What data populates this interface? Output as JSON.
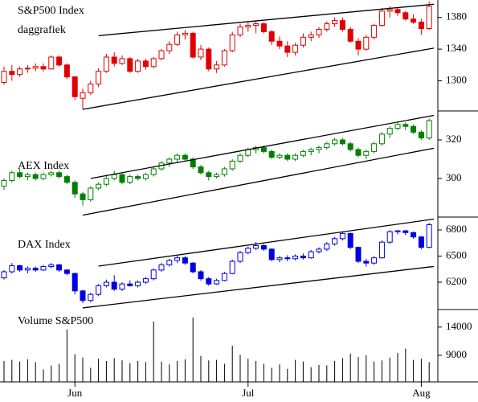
{
  "chart_data": [
    {
      "type": "candlestick",
      "title": "S&P500 Index",
      "subtitle": "daggrafiek",
      "color": "#e00000",
      "ylim": [
        1262,
        1402
      ],
      "yticks": [
        1300,
        1340,
        1380
      ],
      "ohlc": [
        [
          1298,
          1318,
          1295,
          1312
        ],
        [
          1312,
          1320,
          1300,
          1308
        ],
        [
          1308,
          1318,
          1305,
          1315
        ],
        [
          1315,
          1320,
          1310,
          1316
        ],
        [
          1316,
          1322,
          1312,
          1318
        ],
        [
          1318,
          1322,
          1312,
          1315
        ],
        [
          1315,
          1332,
          1314,
          1330
        ],
        [
          1330,
          1332,
          1318,
          1320
        ],
        [
          1320,
          1322,
          1302,
          1305
        ],
        [
          1305,
          1306,
          1276,
          1280
        ],
        [
          1278,
          1290,
          1264,
          1285
        ],
        [
          1285,
          1300,
          1282,
          1296
        ],
        [
          1296,
          1316,
          1292,
          1312
        ],
        [
          1312,
          1334,
          1310,
          1330
        ],
        [
          1330,
          1336,
          1318,
          1322
        ],
        [
          1322,
          1332,
          1320,
          1328
        ],
        [
          1328,
          1330,
          1310,
          1312
        ],
        [
          1312,
          1328,
          1310,
          1325
        ],
        [
          1325,
          1328,
          1314,
          1318
        ],
        [
          1318,
          1330,
          1316,
          1328
        ],
        [
          1328,
          1340,
          1326,
          1338
        ],
        [
          1338,
          1350,
          1334,
          1346
        ],
        [
          1346,
          1362,
          1344,
          1358
        ],
        [
          1358,
          1364,
          1352,
          1360
        ],
        [
          1360,
          1362,
          1328,
          1330
        ],
        [
          1330,
          1345,
          1326,
          1340
        ],
        [
          1340,
          1342,
          1312,
          1315
        ],
        [
          1315,
          1325,
          1310,
          1320
        ],
        [
          1320,
          1340,
          1318,
          1338
        ],
        [
          1338,
          1362,
          1336,
          1358
        ],
        [
          1358,
          1372,
          1355,
          1368
        ],
        [
          1368,
          1374,
          1362,
          1370
        ],
        [
          1370,
          1376,
          1360,
          1372
        ],
        [
          1372,
          1374,
          1360,
          1362
        ],
        [
          1362,
          1364,
          1345,
          1350
        ],
        [
          1350,
          1356,
          1340,
          1344
        ],
        [
          1344,
          1350,
          1330,
          1336
        ],
        [
          1336,
          1348,
          1332,
          1345
        ],
        [
          1345,
          1360,
          1342,
          1355
        ],
        [
          1355,
          1362,
          1350,
          1358
        ],
        [
          1358,
          1368,
          1354,
          1365
        ],
        [
          1365,
          1375,
          1362,
          1372
        ],
        [
          1372,
          1380,
          1368,
          1376
        ],
        [
          1376,
          1380,
          1362,
          1365
        ],
        [
          1365,
          1368,
          1348,
          1350
        ],
        [
          1350,
          1354,
          1332,
          1340
        ],
        [
          1340,
          1358,
          1338,
          1355
        ],
        [
          1355,
          1372,
          1352,
          1370
        ],
        [
          1370,
          1392,
          1368,
          1388
        ],
        [
          1388,
          1394,
          1380,
          1390
        ],
        [
          1390,
          1392,
          1382,
          1386
        ],
        [
          1386,
          1388,
          1376,
          1378
        ],
        [
          1378,
          1384,
          1372,
          1374
        ],
        [
          1374,
          1378,
          1358,
          1366
        ],
        [
          1366,
          1400,
          1364,
          1394
        ]
      ],
      "trendlines": [
        {
          "x": [
            12,
            55
          ],
          "y": [
            1357,
            1397
          ]
        },
        {
          "x": [
            10,
            55
          ],
          "y": [
            1264,
            1342
          ]
        }
      ]
    },
    {
      "type": "candlestick",
      "title": "AEX Index",
      "color": "#008000",
      "ylim": [
        280,
        335
      ],
      "yticks": [
        300,
        320
      ],
      "ohlc": [
        [
          296,
          300,
          294,
          299
        ],
        [
          299,
          304,
          298,
          303
        ],
        [
          303,
          305,
          300,
          301
        ],
        [
          301,
          303,
          299,
          302
        ],
        [
          302,
          303,
          299,
          300
        ],
        [
          300,
          303,
          299,
          302
        ],
        [
          302,
          304,
          301,
          303
        ],
        [
          303,
          304,
          300,
          301
        ],
        [
          301,
          302,
          297,
          298
        ],
        [
          298,
          299,
          290,
          292
        ],
        [
          292,
          293,
          286,
          289
        ],
        [
          289,
          296,
          288,
          295
        ],
        [
          295,
          298,
          294,
          297
        ],
        [
          297,
          302,
          296,
          300
        ],
        [
          300,
          304,
          299,
          302
        ],
        [
          302,
          303,
          297,
          298
        ],
        [
          298,
          302,
          297,
          301
        ],
        [
          301,
          302,
          299,
          300
        ],
        [
          300,
          303,
          299,
          302
        ],
        [
          302,
          306,
          301,
          305
        ],
        [
          305,
          309,
          304,
          308
        ],
        [
          308,
          311,
          306,
          310
        ],
        [
          310,
          313,
          308,
          312
        ],
        [
          312,
          313,
          309,
          310
        ],
        [
          310,
          311,
          305,
          306
        ],
        [
          306,
          307,
          302,
          303
        ],
        [
          303,
          304,
          299,
          301
        ],
        [
          301,
          303,
          300,
          302
        ],
        [
          302,
          306,
          301,
          305
        ],
        [
          305,
          310,
          304,
          309
        ],
        [
          309,
          313,
          308,
          312
        ],
        [
          312,
          316,
          311,
          315
        ],
        [
          315,
          317,
          313,
          316
        ],
        [
          316,
          317,
          313,
          314
        ],
        [
          314,
          315,
          310,
          311
        ],
        [
          311,
          313,
          310,
          312
        ],
        [
          312,
          313,
          309,
          310
        ],
        [
          310,
          313,
          309,
          312
        ],
        [
          312,
          315,
          311,
          314
        ],
        [
          314,
          316,
          312,
          315
        ],
        [
          315,
          317,
          313,
          316
        ],
        [
          316,
          319,
          315,
          318
        ],
        [
          318,
          321,
          317,
          320
        ],
        [
          320,
          321,
          317,
          318
        ],
        [
          318,
          319,
          314,
          315
        ],
        [
          315,
          316,
          311,
          312
        ],
        [
          312,
          315,
          310,
          314
        ],
        [
          314,
          319,
          313,
          318
        ],
        [
          318,
          324,
          317,
          323
        ],
        [
          323,
          327,
          321,
          326
        ],
        [
          326,
          329,
          325,
          328
        ],
        [
          328,
          329,
          325,
          327
        ],
        [
          327,
          328,
          323,
          324
        ],
        [
          324,
          325,
          320,
          321
        ],
        [
          321,
          331,
          320,
          330
        ]
      ],
      "trendlines": [
        {
          "x": [
            11,
            55
          ],
          "y": [
            300,
            333
          ]
        },
        {
          "x": [
            10,
            55
          ],
          "y": [
            281,
            316
          ]
        }
      ]
    },
    {
      "type": "candlestick",
      "title": "DAX Index",
      "color": "#0000e0",
      "ylim": [
        5886,
        6948
      ],
      "yticks": [
        6200,
        6500,
        6800
      ],
      "ohlc": [
        [
          6250,
          6340,
          6230,
          6320
        ],
        [
          6320,
          6420,
          6300,
          6390
        ],
        [
          6390,
          6400,
          6320,
          6340
        ],
        [
          6340,
          6380,
          6300,
          6360
        ],
        [
          6360,
          6380,
          6320,
          6340
        ],
        [
          6340,
          6400,
          6330,
          6380
        ],
        [
          6380,
          6420,
          6360,
          6400
        ],
        [
          6400,
          6410,
          6320,
          6340
        ],
        [
          6340,
          6350,
          6280,
          6300
        ],
        [
          6300,
          6310,
          6060,
          6100
        ],
        [
          6100,
          6110,
          5960,
          5990
        ],
        [
          5990,
          6080,
          5970,
          6060
        ],
        [
          6060,
          6180,
          6040,
          6160
        ],
        [
          6160,
          6230,
          6140,
          6200
        ],
        [
          6200,
          6280,
          6100,
          6120
        ],
        [
          6120,
          6200,
          6100,
          6180
        ],
        [
          6180,
          6220,
          6150,
          6160
        ],
        [
          6160,
          6220,
          6140,
          6200
        ],
        [
          6200,
          6260,
          6180,
          6240
        ],
        [
          6240,
          6360,
          6220,
          6340
        ],
        [
          6340,
          6420,
          6320,
          6400
        ],
        [
          6400,
          6470,
          6380,
          6450
        ],
        [
          6450,
          6500,
          6420,
          6480
        ],
        [
          6480,
          6500,
          6400,
          6420
        ],
        [
          6420,
          6430,
          6300,
          6320
        ],
        [
          6320,
          6340,
          6220,
          6240
        ],
        [
          6240,
          6260,
          6160,
          6180
        ],
        [
          6180,
          6240,
          6170,
          6220
        ],
        [
          6220,
          6320,
          6210,
          6300
        ],
        [
          6300,
          6460,
          6290,
          6440
        ],
        [
          6440,
          6560,
          6420,
          6540
        ],
        [
          6540,
          6610,
          6520,
          6590
        ],
        [
          6590,
          6660,
          6570,
          6620
        ],
        [
          6620,
          6640,
          6560,
          6580
        ],
        [
          6580,
          6590,
          6440,
          6460
        ],
        [
          6460,
          6500,
          6430,
          6480
        ],
        [
          6480,
          6510,
          6440,
          6470
        ],
        [
          6470,
          6520,
          6450,
          6500
        ],
        [
          6500,
          6530,
          6460,
          6480
        ],
        [
          6480,
          6570,
          6470,
          6550
        ],
        [
          6550,
          6600,
          6530,
          6580
        ],
        [
          6580,
          6660,
          6560,
          6640
        ],
        [
          6640,
          6720,
          6620,
          6700
        ],
        [
          6700,
          6780,
          6680,
          6760
        ],
        [
          6760,
          6770,
          6580,
          6600
        ],
        [
          6600,
          6610,
          6420,
          6440
        ],
        [
          6440,
          6470,
          6380,
          6420
        ],
        [
          6420,
          6500,
          6400,
          6480
        ],
        [
          6480,
          6680,
          6470,
          6660
        ],
        [
          6660,
          6800,
          6640,
          6780
        ],
        [
          6780,
          6800,
          6750,
          6790
        ],
        [
          6790,
          6800,
          6740,
          6770
        ],
        [
          6770,
          6780,
          6700,
          6720
        ],
        [
          6720,
          6730,
          6580,
          6600
        ],
        [
          6600,
          6880,
          6590,
          6860
        ]
      ],
      "trendlines": [
        {
          "x": [
            12,
            55
          ],
          "y": [
            6385,
            6930
          ]
        },
        {
          "x": [
            10,
            55
          ],
          "y": [
            5905,
            6385
          ]
        }
      ]
    },
    {
      "type": "bar",
      "title": "Volume S&P500",
      "color": "#000000",
      "ylim": [
        4300,
        17100
      ],
      "yticks": [
        9000,
        14000
      ],
      "categories": [
        null,
        null,
        null,
        null,
        null,
        null,
        null,
        null,
        null,
        "Jun",
        null,
        null,
        null,
        null,
        null,
        null,
        null,
        null,
        null,
        null,
        null,
        null,
        null,
        null,
        null,
        null,
        null,
        null,
        null,
        null,
        null,
        "Jul",
        null,
        null,
        null,
        null,
        null,
        null,
        null,
        null,
        null,
        null,
        null,
        null,
        null,
        null,
        null,
        null,
        null,
        null,
        null,
        null,
        null,
        "Aug",
        null
      ],
      "values": [
        8000,
        8200,
        7900,
        8300,
        7800,
        6500,
        7200,
        7500,
        13600,
        9200,
        8600,
        6800,
        8400,
        8000,
        8500,
        8100,
        7600,
        8000,
        7800,
        15000,
        7900,
        7400,
        8000,
        8300,
        15700,
        8900,
        8100,
        8200,
        7500,
        10700,
        9100,
        8400,
        8000,
        7500,
        6800,
        7400,
        6600,
        8200,
        7900,
        6900,
        7300,
        7200,
        8000,
        8500,
        9300,
        8700,
        9000,
        7900,
        8100,
        8600,
        9400,
        10200,
        8200,
        8400,
        7800
      ]
    }
  ]
}
